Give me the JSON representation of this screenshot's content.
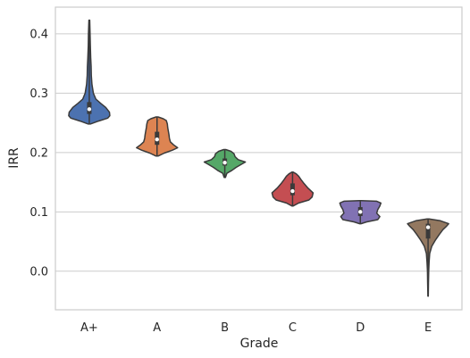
{
  "chart_data": {
    "type": "violin",
    "xlabel": "Grade",
    "ylabel": "IRR",
    "categories": [
      "A+",
      "A",
      "B",
      "C",
      "D",
      "E"
    ],
    "ylim": [
      -0.065,
      0.445
    ],
    "yticks": [
      0.0,
      0.1,
      0.2,
      0.3,
      0.4
    ],
    "ytick_labels": [
      "0.0",
      "0.1",
      "0.2",
      "0.3",
      "0.4"
    ],
    "grid": "horizontal",
    "legend": "none",
    "series": [
      {
        "category": "A+",
        "color": "#4c72b0",
        "min": 0.248,
        "max": 0.423,
        "q1": 0.265,
        "median": 0.273,
        "q3": 0.285,
        "density": [
          [
            0.248,
            0.05
          ],
          [
            0.253,
            0.45
          ],
          [
            0.258,
            0.9
          ],
          [
            0.262,
            1.0
          ],
          [
            0.268,
            0.98
          ],
          [
            0.276,
            0.8
          ],
          [
            0.283,
            0.55
          ],
          [
            0.29,
            0.32
          ],
          [
            0.3,
            0.2
          ],
          [
            0.315,
            0.13
          ],
          [
            0.33,
            0.1
          ],
          [
            0.345,
            0.09
          ],
          [
            0.36,
            0.07
          ],
          [
            0.38,
            0.05
          ],
          [
            0.4,
            0.04
          ],
          [
            0.423,
            0.02
          ]
        ]
      },
      {
        "category": "A",
        "color": "#dd8452",
        "min": 0.194,
        "max": 0.26,
        "q1": 0.213,
        "median": 0.222,
        "q3": 0.235,
        "density": [
          [
            0.194,
            0.05
          ],
          [
            0.199,
            0.35
          ],
          [
            0.204,
            0.75
          ],
          [
            0.208,
            1.0
          ],
          [
            0.213,
            0.8
          ],
          [
            0.218,
            0.65
          ],
          [
            0.224,
            0.6
          ],
          [
            0.23,
            0.58
          ],
          [
            0.236,
            0.55
          ],
          [
            0.242,
            0.52
          ],
          [
            0.248,
            0.5
          ],
          [
            0.254,
            0.45
          ],
          [
            0.257,
            0.3
          ],
          [
            0.26,
            0.05
          ]
        ]
      },
      {
        "category": "B",
        "color": "#55a868",
        "min": 0.158,
        "max": 0.205,
        "q1": 0.178,
        "median": 0.183,
        "q3": 0.19,
        "density": [
          [
            0.158,
            0.03
          ],
          [
            0.165,
            0.1
          ],
          [
            0.17,
            0.35
          ],
          [
            0.175,
            0.55
          ],
          [
            0.18,
            0.8
          ],
          [
            0.184,
            1.0
          ],
          [
            0.188,
            0.65
          ],
          [
            0.193,
            0.5
          ],
          [
            0.198,
            0.45
          ],
          [
            0.202,
            0.3
          ],
          [
            0.205,
            0.05
          ]
        ]
      },
      {
        "category": "C",
        "color": "#c44e52",
        "min": 0.11,
        "max": 0.167,
        "q1": 0.128,
        "median": 0.135,
        "q3": 0.148,
        "density": [
          [
            0.11,
            0.03
          ],
          [
            0.115,
            0.3
          ],
          [
            0.12,
            0.8
          ],
          [
            0.125,
            0.95
          ],
          [
            0.132,
            1.0
          ],
          [
            0.14,
            0.75
          ],
          [
            0.148,
            0.55
          ],
          [
            0.155,
            0.4
          ],
          [
            0.16,
            0.3
          ],
          [
            0.164,
            0.18
          ],
          [
            0.167,
            0.03
          ]
        ]
      },
      {
        "category": "D",
        "color": "#8172b3",
        "min": 0.08,
        "max": 0.119,
        "q1": 0.093,
        "median": 0.1,
        "q3": 0.108,
        "density": [
          [
            0.08,
            0.03
          ],
          [
            0.083,
            0.3
          ],
          [
            0.087,
            0.85
          ],
          [
            0.092,
            0.95
          ],
          [
            0.098,
            0.8
          ],
          [
            0.104,
            0.85
          ],
          [
            0.11,
            0.95
          ],
          [
            0.115,
            1.0
          ],
          [
            0.118,
            0.8
          ],
          [
            0.119,
            0.05
          ]
        ]
      },
      {
        "category": "E",
        "color": "#937860",
        "min": -0.042,
        "max": 0.088,
        "q1": 0.055,
        "median": 0.074,
        "q3": 0.08,
        "density": [
          [
            -0.042,
            0.01
          ],
          [
            -0.02,
            0.02
          ],
          [
            0.0,
            0.03
          ],
          [
            0.015,
            0.05
          ],
          [
            0.03,
            0.08
          ],
          [
            0.042,
            0.18
          ],
          [
            0.052,
            0.35
          ],
          [
            0.062,
            0.55
          ],
          [
            0.07,
            0.72
          ],
          [
            0.076,
            0.9
          ],
          [
            0.08,
            1.0
          ],
          [
            0.085,
            0.6
          ],
          [
            0.088,
            0.05
          ]
        ]
      }
    ]
  }
}
